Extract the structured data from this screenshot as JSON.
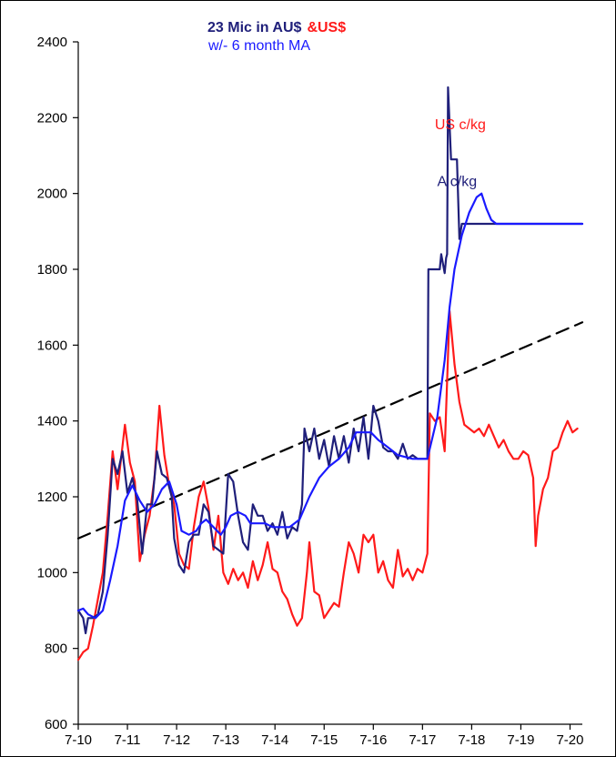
{
  "chart_data": {
    "type": "line",
    "title_part1": "23  Mic in AU$",
    "title_part2": "&US$",
    "subtitle": "w/- 6 month MA",
    "ylim": [
      600,
      2400
    ],
    "y_ticks": [
      "600",
      "800",
      "1000",
      "1200",
      "1400",
      "1600",
      "1800",
      "2000",
      "2200",
      "2400"
    ],
    "xlim": [
      2010.5,
      2020.75
    ],
    "x_tick_values": [
      2010.5,
      2011.5,
      2012.5,
      2013.5,
      2014.5,
      2015.5,
      2016.5,
      2017.5,
      2018.5,
      2019.5,
      2020.5
    ],
    "x_ticks": [
      "7-10",
      "7-11",
      "7-12",
      "7-13",
      "7-14",
      "7-15",
      "7-16",
      "7-17",
      "7-18",
      "7-19",
      "7-20"
    ],
    "annotations": [
      {
        "text": "US c/kg",
        "color": "#ff1a1a",
        "x": 2017.75,
        "y": 2170
      },
      {
        "text": "A c/kg",
        "color": "#1f1f7a",
        "x": 2017.8,
        "y": 2020
      }
    ],
    "series": [
      {
        "key": "us",
        "color": "#ff1a1a",
        "points": [
          [
            2010.5,
            770
          ],
          [
            2010.6,
            790
          ],
          [
            2010.7,
            800
          ],
          [
            2010.8,
            860
          ],
          [
            2010.9,
            930
          ],
          [
            2011.0,
            1000
          ],
          [
            2011.1,
            1150
          ],
          [
            2011.2,
            1320
          ],
          [
            2011.3,
            1220
          ],
          [
            2011.45,
            1390
          ],
          [
            2011.55,
            1290
          ],
          [
            2011.65,
            1240
          ],
          [
            2011.75,
            1030
          ],
          [
            2011.85,
            1100
          ],
          [
            2011.95,
            1150
          ],
          [
            2012.05,
            1250
          ],
          [
            2012.15,
            1440
          ],
          [
            2012.25,
            1310
          ],
          [
            2012.35,
            1230
          ],
          [
            2012.45,
            1180
          ],
          [
            2012.55,
            1050
          ],
          [
            2012.65,
            1020
          ],
          [
            2012.75,
            1010
          ],
          [
            2012.85,
            1120
          ],
          [
            2012.95,
            1200
          ],
          [
            2013.05,
            1240
          ],
          [
            2013.15,
            1170
          ],
          [
            2013.25,
            1060
          ],
          [
            2013.35,
            1150
          ],
          [
            2013.45,
            1000
          ],
          [
            2013.55,
            970
          ],
          [
            2013.65,
            1010
          ],
          [
            2013.75,
            980
          ],
          [
            2013.85,
            1000
          ],
          [
            2013.95,
            960
          ],
          [
            2014.05,
            1030
          ],
          [
            2014.15,
            980
          ],
          [
            2014.25,
            1020
          ],
          [
            2014.35,
            1080
          ],
          [
            2014.45,
            1010
          ],
          [
            2014.55,
            1000
          ],
          [
            2014.65,
            950
          ],
          [
            2014.75,
            930
          ],
          [
            2014.85,
            890
          ],
          [
            2014.95,
            860
          ],
          [
            2015.05,
            880
          ],
          [
            2015.15,
            1000
          ],
          [
            2015.2,
            1080
          ],
          [
            2015.3,
            950
          ],
          [
            2015.4,
            940
          ],
          [
            2015.5,
            880
          ],
          [
            2015.6,
            900
          ],
          [
            2015.7,
            920
          ],
          [
            2015.8,
            910
          ],
          [
            2015.9,
            1000
          ],
          [
            2016.0,
            1080
          ],
          [
            2016.1,
            1050
          ],
          [
            2016.2,
            1000
          ],
          [
            2016.3,
            1100
          ],
          [
            2016.4,
            1080
          ],
          [
            2016.5,
            1100
          ],
          [
            2016.6,
            1000
          ],
          [
            2016.7,
            1030
          ],
          [
            2016.8,
            980
          ],
          [
            2016.9,
            960
          ],
          [
            2017.0,
            1060
          ],
          [
            2017.1,
            990
          ],
          [
            2017.2,
            1010
          ],
          [
            2017.3,
            980
          ],
          [
            2017.4,
            1010
          ],
          [
            2017.5,
            1000
          ],
          [
            2017.6,
            1050
          ],
          [
            2017.65,
            1420
          ],
          [
            2017.75,
            1400
          ],
          [
            2017.85,
            1410
          ],
          [
            2017.95,
            1320
          ],
          [
            2018.05,
            1690
          ],
          [
            2018.15,
            1550
          ],
          [
            2018.25,
            1450
          ],
          [
            2018.35,
            1390
          ],
          [
            2018.45,
            1380
          ],
          [
            2018.55,
            1370
          ],
          [
            2018.65,
            1380
          ],
          [
            2018.75,
            1360
          ],
          [
            2018.85,
            1390
          ],
          [
            2018.95,
            1360
          ],
          [
            2019.05,
            1330
          ],
          [
            2019.15,
            1350
          ],
          [
            2019.25,
            1320
          ],
          [
            2019.35,
            1300
          ],
          [
            2019.45,
            1300
          ],
          [
            2019.55,
            1320
          ],
          [
            2019.65,
            1310
          ],
          [
            2019.75,
            1250
          ],
          [
            2019.8,
            1070
          ],
          [
            2019.85,
            1150
          ],
          [
            2019.95,
            1220
          ],
          [
            2020.05,
            1250
          ],
          [
            2020.15,
            1320
          ],
          [
            2020.25,
            1330
          ],
          [
            2020.35,
            1370
          ],
          [
            2020.45,
            1400
          ],
          [
            2020.55,
            1370
          ],
          [
            2020.65,
            1380
          ]
        ]
      },
      {
        "key": "aud",
        "color": "#1f1f7a",
        "points": [
          [
            2010.5,
            900
          ],
          [
            2010.6,
            880
          ],
          [
            2010.65,
            840
          ],
          [
            2010.7,
            880
          ],
          [
            2010.8,
            880
          ],
          [
            2010.9,
            890
          ],
          [
            2011.0,
            950
          ],
          [
            2011.1,
            1100
          ],
          [
            2011.2,
            1300
          ],
          [
            2011.3,
            1260
          ],
          [
            2011.4,
            1320
          ],
          [
            2011.5,
            1210
          ],
          [
            2011.6,
            1250
          ],
          [
            2011.7,
            1190
          ],
          [
            2011.8,
            1050
          ],
          [
            2011.9,
            1180
          ],
          [
            2012.0,
            1180
          ],
          [
            2012.1,
            1320
          ],
          [
            2012.2,
            1260
          ],
          [
            2012.3,
            1250
          ],
          [
            2012.4,
            1200
          ],
          [
            2012.45,
            1090
          ],
          [
            2012.55,
            1020
          ],
          [
            2012.65,
            1000
          ],
          [
            2012.75,
            1080
          ],
          [
            2012.85,
            1100
          ],
          [
            2012.95,
            1100
          ],
          [
            2013.05,
            1180
          ],
          [
            2013.15,
            1160
          ],
          [
            2013.25,
            1070
          ],
          [
            2013.35,
            1060
          ],
          [
            2013.45,
            1050
          ],
          [
            2013.55,
            1260
          ],
          [
            2013.65,
            1240
          ],
          [
            2013.75,
            1150
          ],
          [
            2013.85,
            1080
          ],
          [
            2013.95,
            1060
          ],
          [
            2014.05,
            1180
          ],
          [
            2014.15,
            1150
          ],
          [
            2014.25,
            1150
          ],
          [
            2014.35,
            1110
          ],
          [
            2014.45,
            1130
          ],
          [
            2014.55,
            1100
          ],
          [
            2014.65,
            1160
          ],
          [
            2014.75,
            1090
          ],
          [
            2014.85,
            1120
          ],
          [
            2014.95,
            1110
          ],
          [
            2015.05,
            1180
          ],
          [
            2015.1,
            1380
          ],
          [
            2015.2,
            1320
          ],
          [
            2015.3,
            1380
          ],
          [
            2015.4,
            1300
          ],
          [
            2015.5,
            1350
          ],
          [
            2015.6,
            1280
          ],
          [
            2015.7,
            1360
          ],
          [
            2015.8,
            1300
          ],
          [
            2015.9,
            1360
          ],
          [
            2016.0,
            1290
          ],
          [
            2016.1,
            1380
          ],
          [
            2016.2,
            1320
          ],
          [
            2016.3,
            1410
          ],
          [
            2016.4,
            1300
          ],
          [
            2016.5,
            1440
          ],
          [
            2016.6,
            1400
          ],
          [
            2016.7,
            1330
          ],
          [
            2016.8,
            1320
          ],
          [
            2016.9,
            1320
          ],
          [
            2017.0,
            1300
          ],
          [
            2017.1,
            1340
          ],
          [
            2017.2,
            1300
          ],
          [
            2017.3,
            1310
          ],
          [
            2017.4,
            1300
          ],
          [
            2017.5,
            1300
          ],
          [
            2017.6,
            1300
          ],
          [
            2017.62,
            1800
          ],
          [
            2017.85,
            1800
          ],
          [
            2017.88,
            1840
          ],
          [
            2017.95,
            1790
          ],
          [
            2017.98,
            1830
          ],
          [
            2018.0,
            1840
          ],
          [
            2018.02,
            2280
          ],
          [
            2018.08,
            2090
          ],
          [
            2018.2,
            2090
          ],
          [
            2018.25,
            1880
          ],
          [
            2018.3,
            1920
          ],
          [
            2018.4,
            1920
          ],
          [
            2018.6,
            1920
          ],
          [
            2019.0,
            1920
          ],
          [
            2019.5,
            1920
          ],
          [
            2020.0,
            1920
          ],
          [
            2020.75,
            1920
          ]
        ]
      },
      {
        "key": "ma",
        "color": "#1a1aff",
        "points": [
          [
            2010.5,
            900
          ],
          [
            2010.6,
            905
          ],
          [
            2010.7,
            890
          ],
          [
            2010.85,
            880
          ],
          [
            2011.0,
            900
          ],
          [
            2011.15,
            980
          ],
          [
            2011.3,
            1070
          ],
          [
            2011.45,
            1190
          ],
          [
            2011.6,
            1230
          ],
          [
            2011.75,
            1190
          ],
          [
            2011.9,
            1160
          ],
          [
            2012.05,
            1180
          ],
          [
            2012.2,
            1220
          ],
          [
            2012.35,
            1240
          ],
          [
            2012.5,
            1180
          ],
          [
            2012.6,
            1110
          ],
          [
            2012.75,
            1100
          ],
          [
            2012.9,
            1110
          ],
          [
            2013.0,
            1130
          ],
          [
            2013.1,
            1140
          ],
          [
            2013.25,
            1120
          ],
          [
            2013.4,
            1100
          ],
          [
            2013.5,
            1120
          ],
          [
            2013.6,
            1150
          ],
          [
            2013.75,
            1160
          ],
          [
            2013.9,
            1150
          ],
          [
            2014.0,
            1130
          ],
          [
            2014.15,
            1130
          ],
          [
            2014.3,
            1130
          ],
          [
            2014.45,
            1120
          ],
          [
            2014.6,
            1120
          ],
          [
            2014.8,
            1120
          ],
          [
            2015.0,
            1140
          ],
          [
            2015.2,
            1200
          ],
          [
            2015.4,
            1250
          ],
          [
            2015.6,
            1280
          ],
          [
            2015.8,
            1300
          ],
          [
            2016.0,
            1330
          ],
          [
            2016.15,
            1370
          ],
          [
            2016.3,
            1370
          ],
          [
            2016.45,
            1370
          ],
          [
            2016.6,
            1350
          ],
          [
            2016.8,
            1330
          ],
          [
            2017.0,
            1310
          ],
          [
            2017.3,
            1300
          ],
          [
            2017.6,
            1300
          ],
          [
            2017.8,
            1410
          ],
          [
            2017.95,
            1560
          ],
          [
            2018.05,
            1700
          ],
          [
            2018.15,
            1800
          ],
          [
            2018.3,
            1890
          ],
          [
            2018.45,
            1950
          ],
          [
            2018.6,
            1990
          ],
          [
            2018.7,
            2000
          ],
          [
            2018.8,
            1960
          ],
          [
            2018.9,
            1930
          ],
          [
            2019.0,
            1920
          ],
          [
            2019.3,
            1920
          ],
          [
            2019.6,
            1920
          ],
          [
            2020.0,
            1920
          ],
          [
            2020.75,
            1920
          ]
        ]
      },
      {
        "key": "trend",
        "color": "#000000",
        "dashed": true,
        "points": [
          [
            2010.5,
            1090
          ],
          [
            2020.75,
            1660
          ]
        ]
      }
    ]
  }
}
